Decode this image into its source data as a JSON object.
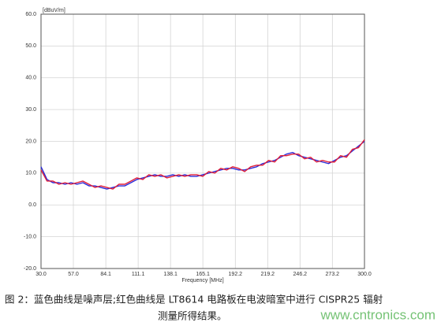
{
  "chart_data": {
    "type": "line",
    "unit_label": "[dBuV/m]",
    "xlabel": "Frequency [MHz]",
    "x": [
      30,
      35,
      40,
      45,
      50,
      55,
      60,
      65,
      70,
      75,
      80,
      85,
      90,
      95,
      100,
      105,
      110,
      115,
      120,
      125,
      130,
      135,
      140,
      145,
      150,
      155,
      160,
      165,
      170,
      175,
      180,
      185,
      190,
      195,
      200,
      205,
      210,
      215,
      220,
      225,
      230,
      235,
      240,
      245,
      250,
      255,
      260,
      265,
      270,
      275,
      280,
      285,
      290,
      295,
      300
    ],
    "series": [
      {
        "color": "#2a2ad8",
        "values": [
          12,
          8,
          7,
          7,
          6.5,
          7,
          6.5,
          7,
          6,
          6,
          5.5,
          5,
          5.5,
          6,
          6,
          7,
          8,
          8.5,
          9,
          9.5,
          9,
          9,
          9.5,
          9,
          9.5,
          9,
          9,
          9.5,
          10,
          10.5,
          11,
          11.5,
          11.5,
          11,
          11,
          11.5,
          12,
          13,
          13.5,
          14,
          15,
          16,
          16.5,
          15.5,
          15,
          14.5,
          14,
          13.5,
          13,
          14,
          15,
          15.5,
          17,
          18.5,
          20
        ]
      },
      {
        "color": "#e0203a",
        "values": [
          11,
          7.5,
          7.5,
          6.5,
          7,
          6.5,
          7,
          7.5,
          6.5,
          5.5,
          6,
          5.5,
          5,
          6.5,
          6.5,
          7.5,
          8.5,
          8,
          9.5,
          9,
          9.5,
          8.5,
          9,
          9.5,
          9,
          9.5,
          9.5,
          9,
          10.5,
          10,
          11.5,
          11,
          12,
          11.5,
          10.5,
          12,
          12.5,
          12.5,
          14,
          13.5,
          15.5,
          15.5,
          16,
          16,
          14.5,
          15,
          13.5,
          14,
          13.5,
          13.5,
          15.5,
          15,
          17.5,
          18,
          20.5
        ]
      }
    ],
    "xlim": [
      30,
      300
    ],
    "xticks": [
      {
        "value": 30,
        "label": "30.0"
      },
      {
        "value": 57,
        "label": "57.0"
      },
      84.1,
      111.1,
      138.1,
      165.1,
      192.2,
      219.2,
      246.2,
      273.2,
      {
        "value": 300,
        "label": "300.0"
      }
    ],
    "ylim": [
      -20,
      60
    ],
    "yticks": [
      {
        "value": -20,
        "label": "-20.0"
      },
      {
        "value": -10,
        "label": "-10.0"
      },
      {
        "value": 0,
        "label": "0.0"
      },
      {
        "value": 10,
        "label": "10.0"
      },
      {
        "value": 20,
        "label": "20.0"
      },
      {
        "value": 30,
        "label": "30.0"
      },
      {
        "value": 40,
        "label": "40.0"
      },
      {
        "value": 50,
        "label": "50.0"
      },
      {
        "value": 60,
        "label": "60.0"
      }
    ],
    "grid": true
  },
  "caption": [
    "图 2：蓝色曲线是噪声层;红色曲线是 LT8614 电路板在电波暗室中进行 CISPR25 辐射",
    "测量所得结果。"
  ],
  "watermark": "www.cntronics.com"
}
